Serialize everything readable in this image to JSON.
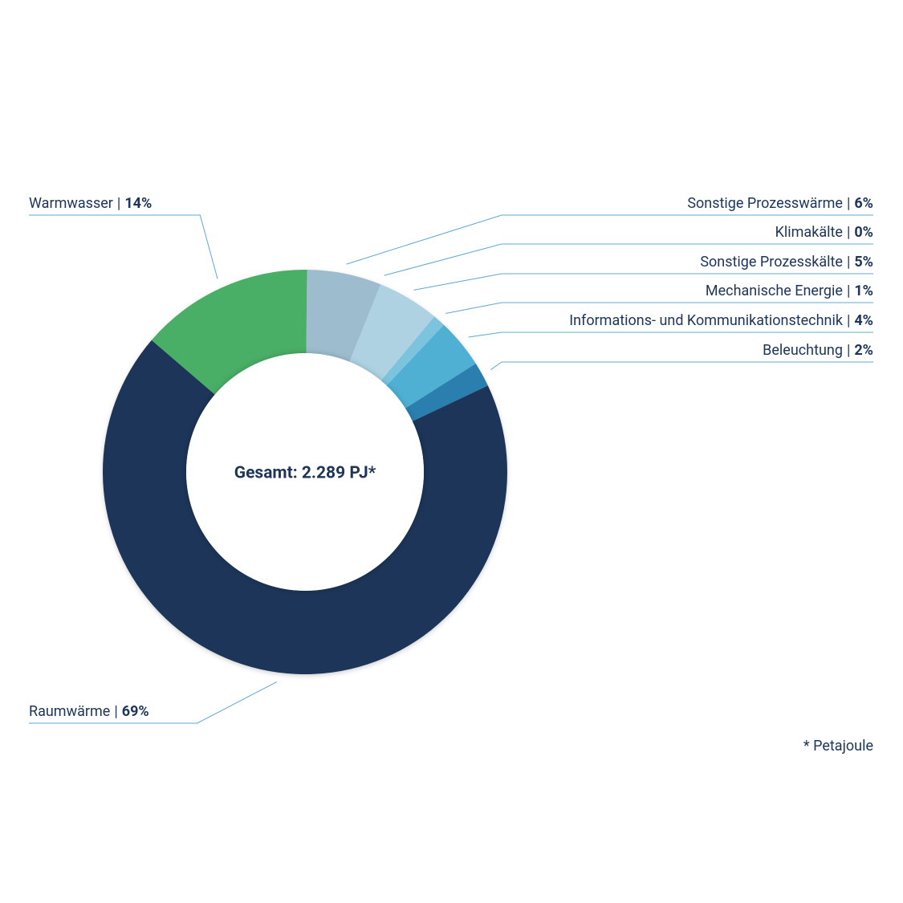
{
  "chart_data": {
    "type": "donut",
    "center_label": "Gesamt: 2.289 PJ*",
    "footnote": "* Petajoule",
    "label_separator": "|",
    "categories": [
      "Sonstige Prozesswärme",
      "Klimakälte",
      "Sonstige Prozesskälte",
      "Mechanische Energie",
      "Informations- und Kommunikationstechnik",
      "Beleuchtung",
      "Raumwärme",
      "Warmwasser"
    ],
    "values": [
      6,
      0,
      5,
      1,
      4,
      2,
      69,
      14
    ],
    "value_labels": [
      "6%",
      "0%",
      "5%",
      "1%",
      "4%",
      "2%",
      "69%",
      "14%"
    ],
    "colors": [
      "#9dbccd",
      "#c3dce8",
      "#aed2e2",
      "#7cc3dd",
      "#4fb0d3",
      "#2a7fae",
      "#1d3558",
      "#4aae66"
    ]
  }
}
